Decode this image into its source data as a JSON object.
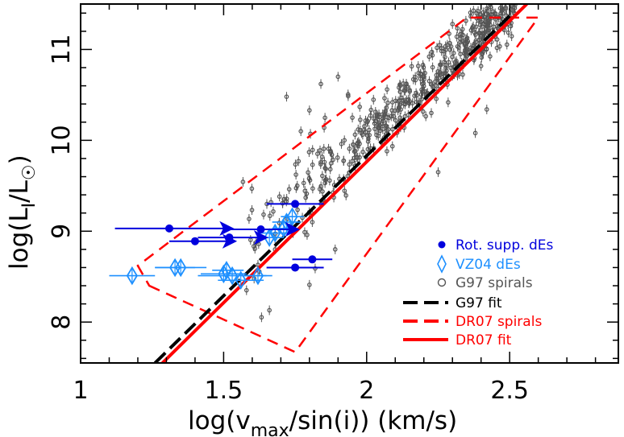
{
  "chart_data": {
    "type": "scatter",
    "xlabel": "log(v",
    "xlabel_sub": "max",
    "xlabel_rest": "/sin(i)) (km/s)",
    "ylabel": "log(L",
    "ylabel_sub": "I",
    "ylabel_rest": "/L",
    "ylabel_end": ")",
    "xlim": [
      1.0,
      2.88
    ],
    "ylim": [
      7.55,
      11.5
    ],
    "xticks": [
      1,
      1.5,
      2,
      2.5
    ],
    "xtick_labels": [
      "1",
      "1.5",
      "2",
      "2.5"
    ],
    "yticks": [
      8,
      9,
      10,
      11
    ],
    "ytick_labels": [
      "8",
      "9",
      "10",
      "11"
    ],
    "colors": {
      "rot_supp": "#0000dd",
      "vz04": "#1e90ff",
      "g97": "#555555",
      "g97_fit": "#000000",
      "dr07": "#ff0000"
    },
    "legend": [
      {
        "label": "Rot. supp. dEs",
        "marker": "filled-circle",
        "color": "#0000dd"
      },
      {
        "label": "VZ04 dEs",
        "marker": "open-diamond",
        "color": "#1e90ff"
      },
      {
        "label": "G97 spirals",
        "marker": "open-circle",
        "color": "#555555"
      },
      {
        "label": "G97 fit",
        "marker": "dashed-line",
        "color": "#000000"
      },
      {
        "label": "DR07 spirals",
        "marker": "dashed-line",
        "color": "#ff0000"
      },
      {
        "label": "DR07 fit",
        "marker": "solid-line",
        "color": "#ff0000"
      }
    ],
    "legend_position": "bottom-right",
    "series": [
      {
        "name": "Rot. supp. dEs",
        "points": [
          {
            "x": 1.31,
            "y": 9.03,
            "xerr_lo": 0.19,
            "xerr_hi": 0.19,
            "lower_limit_x": true
          },
          {
            "x": 1.4,
            "y": 8.89,
            "xerr_lo": 0.09,
            "xerr_hi": 0.11,
            "lower_limit_x": true
          },
          {
            "x": 1.52,
            "y": 8.93,
            "xerr_lo": 0.11,
            "xerr_hi": 0.1,
            "lower_limit_x": true
          },
          {
            "x": 1.63,
            "y": 9.02,
            "xerr_lo": 0.12,
            "xerr_hi": 0.1,
            "lower_limit_x": true
          },
          {
            "x": 1.75,
            "y": 9.3,
            "xerr_lo": 0.1,
            "xerr_hi": 0.1
          },
          {
            "x": 1.81,
            "y": 8.69,
            "xerr_lo": 0.07,
            "xerr_hi": 0.07
          },
          {
            "x": 1.75,
            "y": 8.6,
            "xerr_lo": 0.1,
            "xerr_hi": 0.1
          }
        ]
      },
      {
        "name": "VZ04 dEs",
        "points": [
          {
            "x": 1.18,
            "y": 8.51,
            "xerr_lo": 0.08,
            "xerr_hi": 0.08
          },
          {
            "x": 1.33,
            "y": 8.6,
            "xerr_lo": 0.07,
            "xerr_hi": 0.07
          },
          {
            "x": 1.35,
            "y": 8.6,
            "xerr_lo": 0.09,
            "xerr_hi": 0.09
          },
          {
            "x": 1.5,
            "y": 8.53,
            "xerr_lo": 0.08,
            "xerr_hi": 0.08
          },
          {
            "x": 1.51,
            "y": 8.57,
            "xerr_lo": 0.05,
            "xerr_hi": 0.06
          },
          {
            "x": 1.53,
            "y": 8.51,
            "xerr_lo": 0.12,
            "xerr_hi": 0.12
          },
          {
            "x": 1.56,
            "y": 8.46,
            "xerr_lo": 0.08,
            "xerr_hi": 0.08
          },
          {
            "x": 1.62,
            "y": 8.51,
            "xerr_lo": 0.05,
            "xerr_hi": 0.05
          },
          {
            "x": 1.66,
            "y": 8.93,
            "xerr_lo": 0.05,
            "xerr_hi": 0.05
          },
          {
            "x": 1.68,
            "y": 8.98,
            "xerr_lo": 0.06,
            "xerr_hi": 0.05
          },
          {
            "x": 1.71,
            "y": 9.03,
            "xerr_lo": 0.04,
            "xerr_hi": 0.04
          },
          {
            "x": 1.72,
            "y": 9.1,
            "xerr_lo": 0.05,
            "xerr_hi": 0.05
          },
          {
            "x": 1.74,
            "y": 9.16,
            "xerr_lo": 0.04,
            "xerr_hi": 0.04
          }
        ]
      },
      {
        "name": "G97 spirals",
        "approx_count": 520,
        "trend": {
          "slope": 2.85,
          "intercept": 4.34
        },
        "scatter_sigma_y": 0.15,
        "x_range": [
          1.55,
          2.52
        ],
        "sample_points": [
          {
            "x": 1.9,
            "y": 10.7
          },
          {
            "x": 1.84,
            "y": 10.62
          },
          {
            "x": 1.72,
            "y": 10.48
          },
          {
            "x": 1.8,
            "y": 10.33
          },
          {
            "x": 1.77,
            "y": 10.1
          },
          {
            "x": 1.78,
            "y": 9.53
          },
          {
            "x": 1.84,
            "y": 9.3
          },
          {
            "x": 1.81,
            "y": 9.1
          },
          {
            "x": 1.89,
            "y": 8.8
          },
          {
            "x": 1.82,
            "y": 8.59
          },
          {
            "x": 1.8,
            "y": 8.41
          },
          {
            "x": 1.66,
            "y": 8.13
          },
          {
            "x": 1.95,
            "y": 10.25
          },
          {
            "x": 2.25,
            "y": 9.65
          },
          {
            "x": 2.38,
            "y": 10.08
          },
          {
            "x": 2.3,
            "y": 11.28
          },
          {
            "x": 2.42,
            "y": 10.34
          },
          {
            "x": 1.58,
            "y": 8.35
          },
          {
            "x": 1.62,
            "y": 8.63
          },
          {
            "x": 1.68,
            "y": 8.8
          }
        ]
      }
    ],
    "lines": [
      {
        "name": "G97 fit",
        "style": "dashed",
        "color": "#000000",
        "points": [
          [
            1.26,
            7.55
          ],
          [
            2.51,
            11.4
          ]
        ]
      },
      {
        "name": "DR07 fit",
        "style": "solid",
        "color": "#ff0000",
        "points": [
          [
            1.27,
            7.5
          ],
          [
            2.56,
            11.5
          ]
        ]
      }
    ],
    "polygons": [
      {
        "name": "DR07 spirals",
        "style": "dashed",
        "color": "#ff0000",
        "points": [
          [
            1.24,
            8.4
          ],
          [
            1.75,
            7.67
          ],
          [
            2.6,
            11.35
          ],
          [
            2.35,
            11.35
          ],
          [
            1.2,
            8.62
          ]
        ]
      }
    ]
  }
}
